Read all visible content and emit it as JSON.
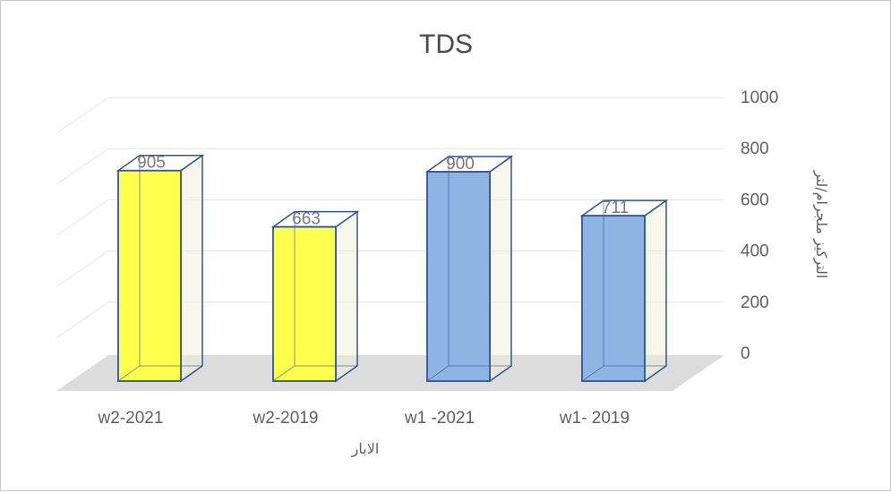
{
  "chart_data": {
    "type": "bar",
    "title": "TDS",
    "xlabel": "الابار",
    "ylabel": "التركيز ملجرام/لتر",
    "categories": [
      "w2-2021",
      "w2-2019",
      "w1 -2021",
      "w1- 2019"
    ],
    "values": [
      905,
      663,
      900,
      711
    ],
    "ylim": [
      0,
      1000
    ],
    "yticks": [
      "0",
      "200",
      "400",
      "600",
      "800",
      "1000"
    ],
    "data_labels": [
      "905",
      "663",
      "900",
      "711"
    ],
    "bar_colors": [
      "#ffff4d",
      "#ffff4d",
      "#8fb4e3",
      "#8fb4e3"
    ],
    "bar_edge_color": "#2f5597",
    "grid": true,
    "legend": "none",
    "style": "3d-column"
  }
}
